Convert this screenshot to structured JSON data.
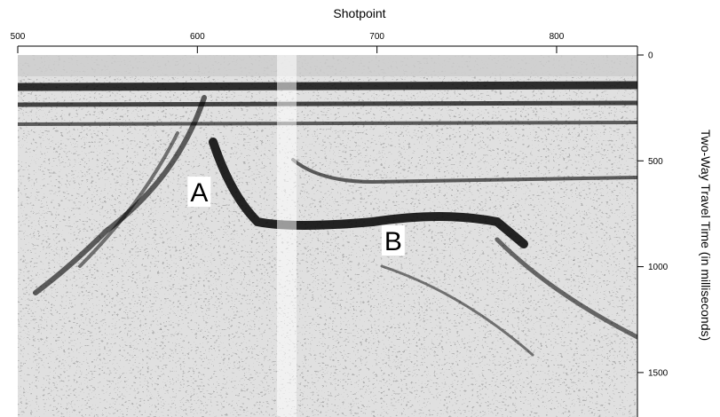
{
  "chart_data": {
    "type": "seismic",
    "title": "Shotpoint",
    "y_label": "Two-Way Travel Time (in milliseconds)",
    "xlim": [
      500,
      845
    ],
    "xticks": [
      500,
      600,
      700,
      800
    ],
    "ylim": [
      0,
      1710
    ],
    "yticks": [
      0,
      500,
      1000,
      1500
    ],
    "annotations": [
      {
        "text": "A",
        "x": 601,
        "y": 650
      },
      {
        "text": "B",
        "x": 709,
        "y": 880
      }
    ]
  }
}
